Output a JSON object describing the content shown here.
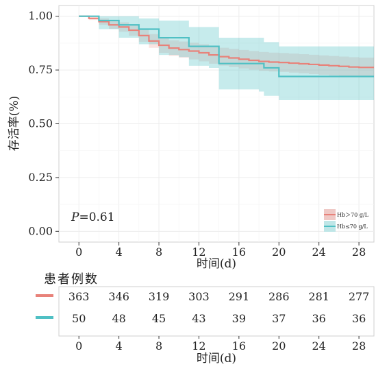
{
  "chart_data": {
    "type": "line",
    "subtype": "kaplan-meier",
    "title": "",
    "xlabel": "时间(d)",
    "ylabel": "存活率(%)",
    "xlim": [
      -2,
      29.5
    ],
    "ylim": [
      -0.05,
      1.05
    ],
    "xticks": [
      0,
      4,
      8,
      12,
      16,
      20,
      24,
      28
    ],
    "xtick_labels": [
      "0",
      "4",
      "8",
      "12",
      "16",
      "20",
      "24",
      "28"
    ],
    "yticks": [
      0,
      0.25,
      0.5,
      0.75,
      1.0
    ],
    "ytick_labels": [
      "0.00",
      "0.25",
      "0.50",
      "0.75",
      "1.00"
    ],
    "grid": true,
    "legend_position": "bottom-right",
    "annotation": {
      "prefix": "P",
      "text": "=0.61"
    },
    "series": [
      {
        "name": "Hb＞70 g/L",
        "color": "#E8827A",
        "steps": [
          [
            0,
            1.0
          ],
          [
            1,
            0.99
          ],
          [
            2,
            0.975
          ],
          [
            3,
            0.96
          ],
          [
            4,
            0.95
          ],
          [
            5,
            0.935
          ],
          [
            6,
            0.91
          ],
          [
            7,
            0.885
          ],
          [
            8,
            0.865
          ],
          [
            9,
            0.852
          ],
          [
            10,
            0.845
          ],
          [
            11,
            0.838
          ],
          [
            12,
            0.83
          ],
          [
            13,
            0.82
          ],
          [
            14,
            0.812
          ],
          [
            15,
            0.806
          ],
          [
            16,
            0.8
          ],
          [
            17,
            0.795
          ],
          [
            18,
            0.79
          ],
          [
            19,
            0.787
          ],
          [
            20,
            0.785
          ],
          [
            21,
            0.782
          ],
          [
            22,
            0.779
          ],
          [
            23,
            0.776
          ],
          [
            24,
            0.773
          ],
          [
            25,
            0.77
          ],
          [
            26,
            0.767
          ],
          [
            27,
            0.764
          ],
          [
            28,
            0.762
          ],
          [
            29.5,
            0.762
          ]
        ],
        "ci_half_width": [
          [
            0,
            0.0
          ],
          [
            2,
            0.015
          ],
          [
            4,
            0.022
          ],
          [
            8,
            0.035
          ],
          [
            12,
            0.04
          ],
          [
            16,
            0.043
          ],
          [
            20,
            0.044
          ],
          [
            24,
            0.045
          ],
          [
            29.5,
            0.046
          ]
        ]
      },
      {
        "name": "Hb≤70 g/L",
        "color": "#4FC0C4",
        "steps": [
          [
            0,
            1.0
          ],
          [
            2,
            0.98
          ],
          [
            4,
            0.96
          ],
          [
            6,
            0.94
          ],
          [
            8,
            0.9
          ],
          [
            10,
            0.9
          ],
          [
            11,
            0.86
          ],
          [
            13,
            0.86
          ],
          [
            14,
            0.78
          ],
          [
            18,
            0.78
          ],
          [
            18.5,
            0.76
          ],
          [
            20,
            0.72
          ],
          [
            29.5,
            0.72
          ]
        ],
        "ci": [
          [
            0,
            1.0,
            1.0
          ],
          [
            2,
            1.0,
            0.94
          ],
          [
            4,
            1.0,
            0.9
          ],
          [
            6,
            0.99,
            0.87
          ],
          [
            8,
            0.98,
            0.82
          ],
          [
            10,
            0.98,
            0.81
          ],
          [
            11,
            0.95,
            0.77
          ],
          [
            13,
            0.95,
            0.76
          ],
          [
            14,
            0.9,
            0.66
          ],
          [
            18,
            0.9,
            0.65
          ],
          [
            18.5,
            0.88,
            0.63
          ],
          [
            20,
            0.86,
            0.61
          ],
          [
            29.5,
            0.86,
            0.61
          ]
        ]
      }
    ],
    "risk_table": {
      "title": "患者例数",
      "time_points": [
        0,
        4,
        8,
        12,
        16,
        20,
        24,
        28
      ],
      "rows": [
        {
          "color": "#E8827A",
          "counts": [
            "363",
            "346",
            "319",
            "303",
            "291",
            "286",
            "281",
            "277"
          ]
        },
        {
          "color": "#4FC0C4",
          "counts": [
            "50",
            "48",
            "45",
            "43",
            "39",
            "37",
            "36",
            "36"
          ]
        }
      ],
      "xlabel": "时间(d)"
    }
  }
}
